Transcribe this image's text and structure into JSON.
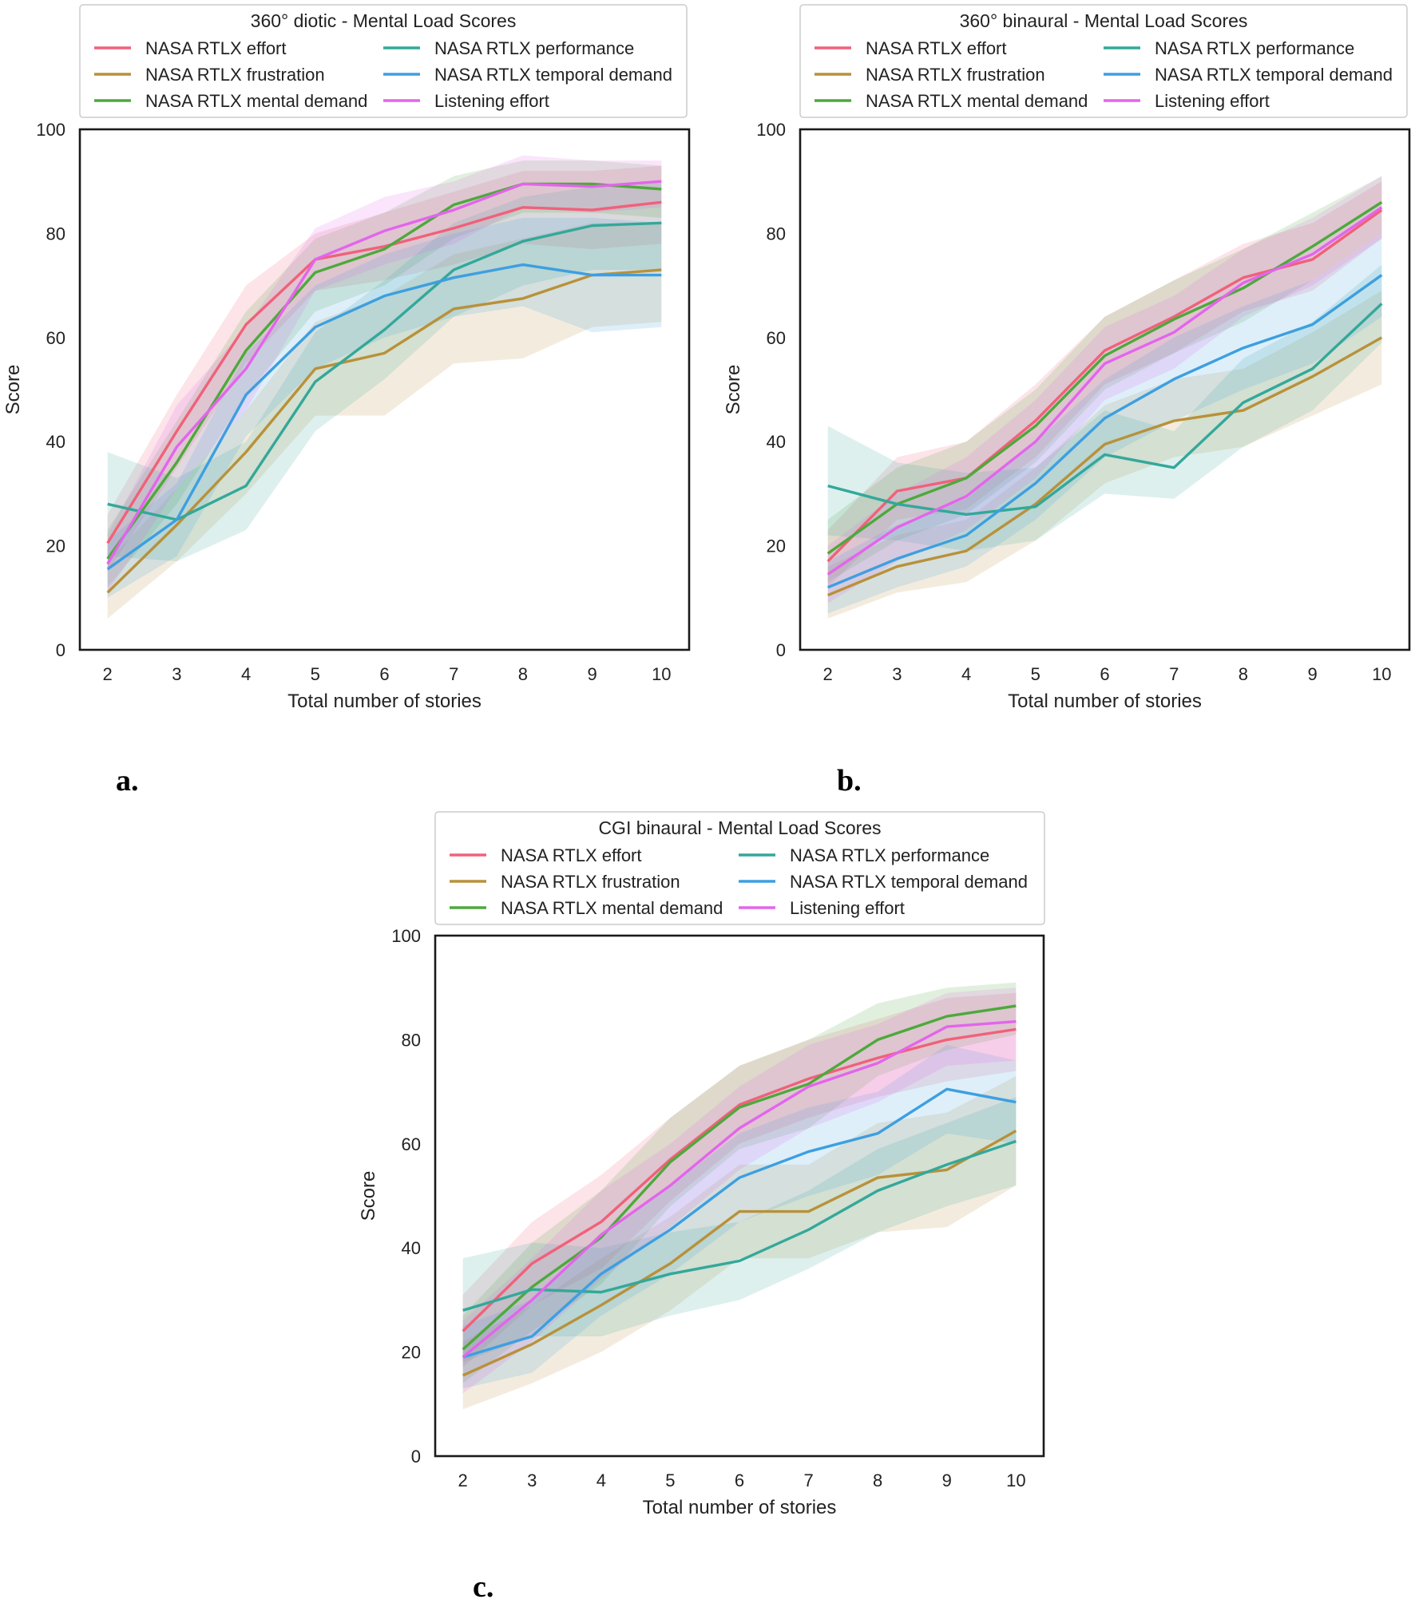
{
  "figure": {
    "panel_labels": [
      "a.",
      "b.",
      "c."
    ]
  },
  "series_styles": [
    {
      "name": "NASA RTLX effort",
      "color": "#f0617a"
    },
    {
      "name": "NASA RTLX frustration",
      "color": "#b8913a"
    },
    {
      "name": "NASA RTLX mental demand",
      "color": "#4da93b"
    },
    {
      "name": "NASA RTLX performance",
      "color": "#33a89a"
    },
    {
      "name": "NASA RTLX temporal demand",
      "color": "#3d9fe0"
    },
    {
      "name": "Listening effort",
      "color": "#e365ec"
    }
  ],
  "chart_data": [
    {
      "type": "line",
      "panel": "a.",
      "title": "360° diotic - Mental Load Scores",
      "xlabel": "Total number of stories",
      "ylabel": "Score",
      "x": [
        2,
        3,
        4,
        5,
        6,
        7,
        8,
        9,
        10
      ],
      "xlim": [
        1.6,
        10.4
      ],
      "ylim": [
        0,
        100
      ],
      "yticks": [
        0,
        20,
        40,
        60,
        80,
        100
      ],
      "legend_position": "above plot",
      "series": [
        {
          "name": "NASA RTLX effort",
          "values": [
            20.5,
            42,
            62.5,
            75,
            77.5,
            81,
            85,
            84.5,
            86
          ],
          "band": [
            [
              15,
              26
            ],
            [
              35,
              49
            ],
            [
              55,
              70
            ],
            [
              69,
              80
            ],
            [
              71,
              84
            ],
            [
              74,
              88
            ],
            [
              78,
              92
            ],
            [
              77,
              92
            ],
            [
              78,
              93
            ]
          ]
        },
        {
          "name": "NASA RTLX frustration",
          "values": [
            11,
            24,
            38,
            54,
            57,
            65.5,
            67.5,
            72,
            73
          ],
          "band": [
            [
              6,
              17
            ],
            [
              17,
              31
            ],
            [
              30,
              46
            ],
            [
              45,
              63
            ],
            [
              45,
              68
            ],
            [
              55,
              76
            ],
            [
              56,
              79
            ],
            [
              62,
              82
            ],
            [
              63,
              82
            ]
          ]
        },
        {
          "name": "NASA RTLX mental demand",
          "values": [
            17.5,
            36,
            57.5,
            72.5,
            77,
            85.5,
            89.5,
            89.5,
            88.5
          ],
          "band": [
            [
              12,
              23
            ],
            [
              28,
              44
            ],
            [
              49,
              65
            ],
            [
              65,
              79
            ],
            [
              70,
              84
            ],
            [
              79,
              91
            ],
            [
              84,
              94
            ],
            [
              84,
              94
            ],
            [
              83,
              93
            ]
          ]
        },
        {
          "name": "NASA RTLX performance",
          "values": [
            28,
            25,
            31.5,
            51.5,
            61.5,
            73,
            78.5,
            81.5,
            82
          ],
          "band": [
            [
              18,
              38
            ],
            [
              17,
              33
            ],
            [
              23,
              40
            ],
            [
              42,
              61
            ],
            [
              52,
              71
            ],
            [
              64,
              82
            ],
            [
              70,
              87
            ],
            [
              73,
              89
            ],
            [
              73,
              90
            ]
          ]
        },
        {
          "name": "NASA RTLX temporal demand",
          "values": [
            15.5,
            25,
            49,
            62,
            68,
            71.5,
            74,
            72,
            72
          ],
          "band": [
            [
              10,
              21
            ],
            [
              18,
              32
            ],
            [
              41,
              57
            ],
            [
              54,
              70
            ],
            [
              60,
              76
            ],
            [
              64,
              80
            ],
            [
              66,
              83
            ],
            [
              61,
              83
            ],
            [
              62,
              82
            ]
          ]
        },
        {
          "name": "Listening effort",
          "values": [
            16.5,
            39,
            54,
            75,
            80.5,
            84.5,
            89.5,
            89,
            90
          ],
          "band": [
            [
              11,
              22
            ],
            [
              31,
              47
            ],
            [
              46,
              62
            ],
            [
              69,
              81
            ],
            [
              74,
              87
            ],
            [
              78,
              90
            ],
            [
              85,
              95
            ],
            [
              84,
              94
            ],
            [
              85,
              94
            ]
          ]
        }
      ]
    },
    {
      "type": "line",
      "panel": "b.",
      "title": "360° binaural - Mental Load Scores",
      "xlabel": "Total number of stories",
      "ylabel": "Score",
      "x": [
        2,
        3,
        4,
        5,
        6,
        7,
        8,
        9,
        10
      ],
      "xlim": [
        1.6,
        10.4
      ],
      "ylim": [
        0,
        100
      ],
      "yticks": [
        0,
        20,
        40,
        60,
        80,
        100
      ],
      "legend_position": "above plot",
      "series": [
        {
          "name": "NASA RTLX effort",
          "values": [
            17,
            30.5,
            33,
            44,
            57.5,
            64,
            71.5,
            75,
            84.5
          ],
          "band": [
            [
              12,
              23
            ],
            [
              25,
              37
            ],
            [
              27,
              40
            ],
            [
              37,
              51
            ],
            [
              51,
              64
            ],
            [
              57,
              71
            ],
            [
              65,
              78
            ],
            [
              69,
              82
            ],
            [
              79,
              90
            ]
          ]
        },
        {
          "name": "NASA RTLX frustration",
          "values": [
            10.5,
            16,
            19,
            28,
            39.5,
            44,
            46,
            52.5,
            60
          ],
          "band": [
            [
              6,
              16
            ],
            [
              11,
              22
            ],
            [
              13,
              25
            ],
            [
              21,
              35
            ],
            [
              32,
              47
            ],
            [
              37,
              52
            ],
            [
              39,
              54
            ],
            [
              45,
              61
            ],
            [
              51,
              69
            ]
          ]
        },
        {
          "name": "NASA RTLX mental demand",
          "values": [
            18.5,
            28,
            33,
            43,
            56.5,
            63.5,
            69.5,
            77.5,
            86
          ],
          "band": [
            [
              13,
              25
            ],
            [
              21,
              35
            ],
            [
              26,
              40
            ],
            [
              36,
              50
            ],
            [
              50,
              64
            ],
            [
              57,
              71
            ],
            [
              63,
              77
            ],
            [
              71,
              84
            ],
            [
              80,
              91
            ]
          ]
        },
        {
          "name": "NASA RTLX performance",
          "values": [
            31.5,
            28,
            26,
            27.5,
            37.5,
            35,
            47.5,
            54,
            66.5
          ],
          "band": [
            [
              22,
              43
            ],
            [
              21,
              36
            ],
            [
              19,
              34
            ],
            [
              21,
              35
            ],
            [
              30,
              46
            ],
            [
              29,
              42
            ],
            [
              39,
              56
            ],
            [
              46,
              63
            ],
            [
              59,
              74
            ]
          ]
        },
        {
          "name": "NASA RTLX temporal demand",
          "values": [
            12,
            17.5,
            22,
            32,
            44.5,
            52,
            58,
            62.5,
            72
          ],
          "band": [
            [
              7,
              17
            ],
            [
              12,
              24
            ],
            [
              16,
              29
            ],
            [
              25,
              40
            ],
            [
              37,
              52
            ],
            [
              44,
              60
            ],
            [
              50,
              66
            ],
            [
              55,
              71
            ],
            [
              64,
              80
            ]
          ]
        },
        {
          "name": "Listening effort",
          "values": [
            14.5,
            23.5,
            29.5,
            40,
            55,
            61,
            70.5,
            76,
            85
          ],
          "band": [
            [
              9,
              20
            ],
            [
              17,
              30
            ],
            [
              23,
              37
            ],
            [
              33,
              48
            ],
            [
              48,
              62
            ],
            [
              54,
              68
            ],
            [
              64,
              77
            ],
            [
              70,
              83
            ],
            [
              79,
              91
            ]
          ]
        }
      ]
    },
    {
      "type": "line",
      "panel": "c.",
      "title": "CGI binaural - Mental Load Scores",
      "xlabel": "Total number of stories",
      "ylabel": "Score",
      "x": [
        2,
        3,
        4,
        5,
        6,
        7,
        8,
        9,
        10
      ],
      "xlim": [
        1.6,
        10.4
      ],
      "ylim": [
        0,
        100
      ],
      "yticks": [
        0,
        20,
        40,
        60,
        80,
        100
      ],
      "legend_position": "above plot",
      "series": [
        {
          "name": "NASA RTLX effort",
          "values": [
            24,
            37,
            45,
            57,
            67.5,
            72.5,
            76.5,
            80,
            82
          ],
          "band": [
            [
              17,
              31
            ],
            [
              29,
              45
            ],
            [
              36,
              54
            ],
            [
              49,
              65
            ],
            [
              60,
              75
            ],
            [
              65,
              80
            ],
            [
              69,
              84
            ],
            [
              72,
              88
            ],
            [
              74,
              89
            ]
          ]
        },
        {
          "name": "NASA RTLX frustration",
          "values": [
            15.5,
            21.5,
            29,
            37,
            47,
            47,
            53.5,
            55,
            62.5
          ],
          "band": [
            [
              9,
              22
            ],
            [
              14,
              29
            ],
            [
              20,
              38
            ],
            [
              28,
              46
            ],
            [
              38,
              56
            ],
            [
              38,
              56
            ],
            [
              43,
              64
            ],
            [
              44,
              66
            ],
            [
              52,
              73
            ]
          ]
        },
        {
          "name": "NASA RTLX mental demand",
          "values": [
            20.5,
            32.5,
            42,
            56.5,
            67,
            71.5,
            80,
            84.5,
            86.5
          ],
          "band": [
            [
              14,
              27
            ],
            [
              24,
              41
            ],
            [
              33,
              51
            ],
            [
              48,
              65
            ],
            [
              59,
              75
            ],
            [
              63,
              80
            ],
            [
              73,
              87
            ],
            [
              78,
              90
            ],
            [
              81,
              91
            ]
          ]
        },
        {
          "name": "NASA RTLX performance",
          "values": [
            28,
            32,
            31.5,
            35,
            37.5,
            43.5,
            51,
            56,
            60.5
          ],
          "band": [
            [
              18,
              38
            ],
            [
              23,
              41
            ],
            [
              23,
              40
            ],
            [
              27,
              43
            ],
            [
              30,
              45
            ],
            [
              36,
              51
            ],
            [
              43,
              59
            ],
            [
              48,
              64
            ],
            [
              52,
              69
            ]
          ]
        },
        {
          "name": "NASA RTLX temporal demand",
          "values": [
            19,
            23,
            35,
            43.5,
            53.5,
            58.5,
            62,
            70.5,
            68
          ],
          "band": [
            [
              13,
              25
            ],
            [
              16,
              30
            ],
            [
              27,
              43
            ],
            [
              35,
              52
            ],
            [
              45,
              62
            ],
            [
              50,
              67
            ],
            [
              54,
              70
            ],
            [
              62,
              79
            ],
            [
              60,
              76
            ]
          ]
        },
        {
          "name": "Listening effort",
          "values": [
            19,
            30,
            42.5,
            52,
            63,
            71,
            75.5,
            82.5,
            83.5
          ],
          "band": [
            [
              12,
              26
            ],
            [
              22,
              38
            ],
            [
              34,
              51
            ],
            [
              44,
              60
            ],
            [
              55,
              71
            ],
            [
              63,
              79
            ],
            [
              68,
              83
            ],
            [
              75,
              89
            ],
            [
              76,
              90
            ]
          ]
        }
      ]
    }
  ]
}
